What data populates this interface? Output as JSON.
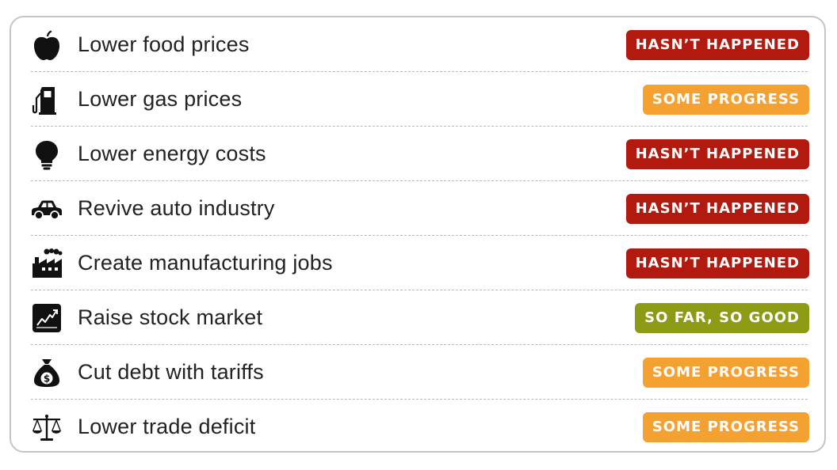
{
  "status_colors": {
    "hasnt_happened": "#b31a0f",
    "some_progress": "#f5a132",
    "so_far_so_good": "#8d9a14"
  },
  "items": [
    {
      "icon": "apple-icon",
      "label": "Lower food prices",
      "status": "HASN’T HAPPENED",
      "status_color": "#b31a0f"
    },
    {
      "icon": "gas-pump-icon",
      "label": "Lower gas prices",
      "status": "SOME PROGRESS",
      "status_color": "#f5a132"
    },
    {
      "icon": "lightbulb-icon",
      "label": "Lower energy costs",
      "status": "HASN’T HAPPENED",
      "status_color": "#b31a0f"
    },
    {
      "icon": "car-icon",
      "label": "Revive auto industry",
      "status": "HASN’T HAPPENED",
      "status_color": "#b31a0f"
    },
    {
      "icon": "factory-icon",
      "label": "Create manufacturing jobs",
      "status": "HASN’T HAPPENED",
      "status_color": "#b31a0f"
    },
    {
      "icon": "stock-chart-icon",
      "label": "Raise stock market",
      "status": "SO FAR, SO GOOD",
      "status_color": "#8d9a14"
    },
    {
      "icon": "money-bag-icon",
      "label": "Cut debt with tariffs",
      "status": "SOME PROGRESS",
      "status_color": "#f5a132"
    },
    {
      "icon": "scales-icon",
      "label": "Lower trade deficit",
      "status": "SOME PROGRESS",
      "status_color": "#f5a132"
    }
  ]
}
